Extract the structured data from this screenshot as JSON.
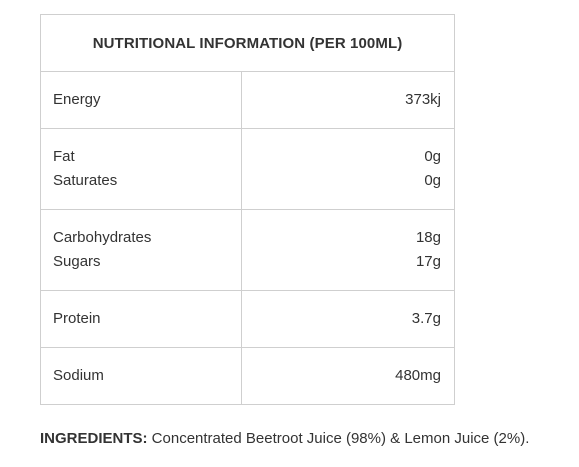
{
  "table": {
    "title": "NUTRITIONAL INFORMATION (PER 100ML)",
    "rows": [
      {
        "items": [
          {
            "label": "Energy",
            "value": "373kj"
          }
        ]
      },
      {
        "items": [
          {
            "label": "Fat",
            "value": "0g"
          },
          {
            "label": "Saturates",
            "value": "0g"
          }
        ]
      },
      {
        "items": [
          {
            "label": "Carbohydrates",
            "value": "18g"
          },
          {
            "label": "Sugars",
            "value": "17g"
          }
        ]
      },
      {
        "items": [
          {
            "label": "Protein",
            "value": "3.7g"
          }
        ]
      },
      {
        "items": [
          {
            "label": "Sodium",
            "value": "480mg"
          }
        ]
      }
    ]
  },
  "ingredients": {
    "label": "INGREDIENTS:",
    "text": " Concentrated Beetroot Juice (98%) & Lemon Juice (2%)."
  }
}
